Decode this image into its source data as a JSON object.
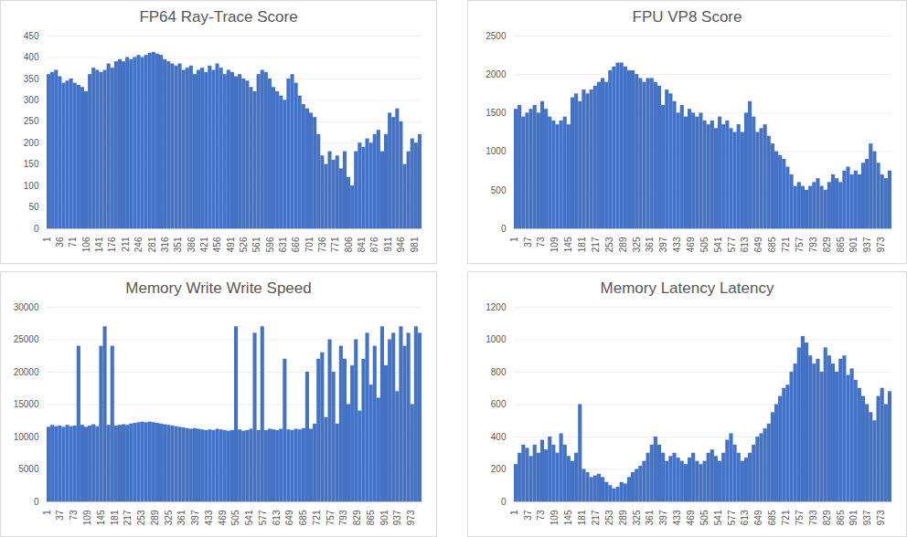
{
  "chart_data": [
    {
      "type": "bar",
      "title": "FP64 Ray-Trace Score",
      "color": "#4472c4",
      "grid": true,
      "x": [
        1,
        11,
        21,
        31,
        41,
        51,
        61,
        71,
        81,
        91,
        101,
        111,
        121,
        131,
        141,
        151,
        161,
        171,
        181,
        191,
        201,
        211,
        221,
        231,
        241,
        251,
        261,
        271,
        281,
        291,
        301,
        311,
        321,
        331,
        341,
        351,
        361,
        371,
        381,
        391,
        401,
        411,
        421,
        431,
        441,
        451,
        461,
        471,
        481,
        491,
        501,
        511,
        521,
        531,
        541,
        551,
        561,
        571,
        581,
        591,
        601,
        611,
        621,
        631,
        641,
        651,
        661,
        671,
        681,
        691,
        701,
        711,
        721,
        731,
        741,
        751,
        761,
        771,
        781,
        791,
        801,
        811,
        821,
        831,
        841,
        851,
        861,
        871,
        881,
        891,
        901,
        911,
        921,
        931,
        941,
        951,
        961,
        971,
        981,
        991
      ],
      "values": [
        360,
        365,
        370,
        355,
        340,
        345,
        350,
        340,
        335,
        330,
        320,
        360,
        375,
        370,
        365,
        370,
        385,
        375,
        390,
        395,
        390,
        400,
        395,
        400,
        405,
        400,
        405,
        410,
        412,
        408,
        405,
        395,
        390,
        385,
        380,
        385,
        370,
        375,
        380,
        360,
        370,
        375,
        365,
        380,
        370,
        385,
        375,
        360,
        370,
        365,
        355,
        360,
        350,
        345,
        330,
        320,
        360,
        370,
        365,
        350,
        330,
        320,
        310,
        300,
        350,
        360,
        340,
        310,
        290,
        280,
        270,
        260,
        220,
        170,
        150,
        180,
        160,
        170,
        140,
        180,
        120,
        100,
        180,
        200,
        190,
        210,
        200,
        220,
        230,
        180,
        220,
        270,
        260,
        280,
        250,
        150,
        180,
        210,
        200,
        220
      ],
      "xlim": [
        1,
        1001
      ],
      "xticks": [
        1,
        36,
        71,
        106,
        141,
        176,
        211,
        246,
        281,
        316,
        351,
        386,
        421,
        456,
        491,
        526,
        561,
        596,
        631,
        666,
        701,
        736,
        771,
        806,
        841,
        876,
        911,
        946,
        981
      ],
      "ylim": [
        0,
        450
      ],
      "yticks": [
        0,
        50,
        100,
        150,
        200,
        250,
        300,
        350,
        400,
        450
      ]
    },
    {
      "type": "bar",
      "title": "FPU VP8 Score",
      "color": "#4472c4",
      "grid": true,
      "x": [
        1,
        11,
        21,
        31,
        41,
        51,
        61,
        71,
        81,
        91,
        101,
        111,
        121,
        131,
        141,
        151,
        161,
        171,
        181,
        191,
        201,
        211,
        221,
        231,
        241,
        251,
        261,
        271,
        281,
        291,
        301,
        311,
        321,
        331,
        341,
        351,
        361,
        371,
        381,
        391,
        401,
        411,
        421,
        431,
        441,
        451,
        461,
        471,
        481,
        491,
        501,
        511,
        521,
        531,
        541,
        551,
        561,
        571,
        581,
        591,
        601,
        611,
        621,
        631,
        641,
        651,
        661,
        671,
        681,
        691,
        701,
        711,
        721,
        731,
        741,
        751,
        761,
        771,
        781,
        791,
        801,
        811,
        821,
        831,
        841,
        851,
        861,
        871,
        881,
        891,
        901,
        911,
        921,
        931,
        941,
        951,
        961,
        971,
        981,
        991
      ],
      "values": [
        1550,
        1600,
        1450,
        1500,
        1550,
        1600,
        1500,
        1650,
        1550,
        1450,
        1400,
        1350,
        1400,
        1450,
        1350,
        1700,
        1750,
        1650,
        1800,
        1750,
        1800,
        1850,
        1900,
        1950,
        1900,
        2050,
        2100,
        2150,
        2150,
        2100,
        2050,
        2050,
        2000,
        1950,
        1900,
        1950,
        1950,
        1900,
        1850,
        1600,
        1800,
        1750,
        1650,
        1500,
        1600,
        1450,
        1550,
        1500,
        1450,
        1500,
        1400,
        1350,
        1400,
        1300,
        1450,
        1350,
        1400,
        1300,
        1250,
        1350,
        1250,
        1500,
        1650,
        1450,
        1250,
        1300,
        1350,
        1200,
        1100,
        1000,
        950,
        900,
        800,
        700,
        550,
        600,
        550,
        500,
        550,
        600,
        650,
        550,
        500,
        600,
        700,
        650,
        600,
        750,
        800,
        700,
        750,
        700,
        850,
        900,
        1100,
        1000,
        850,
        700,
        650,
        750
      ],
      "xlim": [
        1,
        1001
      ],
      "xticks": [
        1,
        37,
        73,
        109,
        145,
        181,
        217,
        253,
        289,
        325,
        361,
        397,
        433,
        469,
        505,
        541,
        577,
        613,
        649,
        685,
        721,
        757,
        793,
        829,
        865,
        901,
        937,
        973
      ],
      "ylim": [
        0,
        2500
      ],
      "yticks": [
        0,
        500,
        1000,
        1500,
        2000,
        2500
      ]
    },
    {
      "type": "bar",
      "title": "Memory Write Write Speed",
      "color": "#4472c4",
      "grid": true,
      "x": [
        1,
        11,
        21,
        31,
        41,
        51,
        61,
        71,
        81,
        91,
        101,
        111,
        121,
        131,
        141,
        151,
        161,
        171,
        181,
        191,
        201,
        211,
        221,
        231,
        241,
        251,
        261,
        271,
        281,
        291,
        301,
        311,
        321,
        331,
        341,
        351,
        361,
        371,
        381,
        391,
        401,
        411,
        421,
        431,
        441,
        451,
        461,
        471,
        481,
        491,
        501,
        511,
        521,
        531,
        541,
        551,
        561,
        571,
        581,
        591,
        601,
        611,
        621,
        631,
        641,
        651,
        661,
        671,
        681,
        691,
        701,
        711,
        721,
        731,
        741,
        751,
        761,
        771,
        781,
        791,
        801,
        811,
        821,
        831,
        841,
        851,
        861,
        871,
        881,
        891,
        901,
        911,
        921,
        931,
        941,
        951,
        961,
        971,
        981,
        991
      ],
      "values": [
        11500,
        11800,
        11600,
        11700,
        11500,
        11800,
        11600,
        11700,
        24000,
        11800,
        11500,
        11700,
        11900,
        11600,
        24000,
        27000,
        11800,
        24000,
        11700,
        11800,
        11900,
        11800,
        12000,
        12100,
        12200,
        12300,
        12200,
        12300,
        12200,
        12100,
        12000,
        11900,
        11800,
        11700,
        11600,
        11500,
        11400,
        11300,
        11200,
        11300,
        11200,
        11100,
        11000,
        11100,
        11000,
        11200,
        11100,
        11000,
        10900,
        11000,
        27000,
        11100,
        10900,
        11000,
        11200,
        26000,
        11000,
        27000,
        11000,
        11200,
        11100,
        11000,
        11200,
        22000,
        11100,
        11000,
        11200,
        11100,
        11300,
        20000,
        11200,
        12000,
        22000,
        23000,
        13000,
        25000,
        20000,
        12000,
        24000,
        22000,
        15000,
        21000,
        25000,
        14000,
        22000,
        26000,
        18000,
        24000,
        16000,
        27000,
        21000,
        25000,
        26000,
        17000,
        27000,
        24000,
        26000,
        15000,
        27000,
        26000
      ],
      "xlim": [
        1,
        1001
      ],
      "xticks": [
        1,
        37,
        73,
        109,
        145,
        181,
        217,
        253,
        289,
        325,
        361,
        397,
        433,
        469,
        505,
        541,
        577,
        613,
        649,
        685,
        721,
        757,
        793,
        829,
        865,
        901,
        937,
        973
      ],
      "ylim": [
        0,
        30000
      ],
      "yticks": [
        0,
        5000,
        10000,
        15000,
        20000,
        25000,
        30000
      ]
    },
    {
      "type": "bar",
      "title": "Memory Latency Latency",
      "color": "#4472c4",
      "grid": true,
      "x": [
        1,
        11,
        21,
        31,
        41,
        51,
        61,
        71,
        81,
        91,
        101,
        111,
        121,
        131,
        141,
        151,
        161,
        171,
        181,
        191,
        201,
        211,
        221,
        231,
        241,
        251,
        261,
        271,
        281,
        291,
        301,
        311,
        321,
        331,
        341,
        351,
        361,
        371,
        381,
        391,
        401,
        411,
        421,
        431,
        441,
        451,
        461,
        471,
        481,
        491,
        501,
        511,
        521,
        531,
        541,
        551,
        561,
        571,
        581,
        591,
        601,
        611,
        621,
        631,
        641,
        651,
        661,
        671,
        681,
        691,
        701,
        711,
        721,
        731,
        741,
        751,
        761,
        771,
        781,
        791,
        801,
        811,
        821,
        831,
        841,
        851,
        861,
        871,
        881,
        891,
        901,
        911,
        921,
        931,
        941,
        951,
        961,
        971,
        981,
        991
      ],
      "values": [
        230,
        300,
        350,
        330,
        280,
        350,
        300,
        380,
        320,
        400,
        350,
        300,
        420,
        350,
        280,
        250,
        300,
        600,
        200,
        180,
        150,
        160,
        170,
        150,
        120,
        100,
        80,
        90,
        120,
        110,
        150,
        180,
        200,
        220,
        250,
        300,
        350,
        400,
        350,
        300,
        250,
        280,
        300,
        270,
        250,
        230,
        270,
        300,
        250,
        230,
        250,
        300,
        320,
        280,
        250,
        300,
        380,
        420,
        350,
        300,
        250,
        270,
        300,
        350,
        400,
        420,
        450,
        480,
        550,
        600,
        650,
        700,
        720,
        800,
        850,
        950,
        1020,
        980,
        900,
        850,
        880,
        800,
        950,
        900,
        850,
        800,
        880,
        900,
        780,
        820,
        750,
        700,
        650,
        600,
        550,
        500,
        650,
        700,
        600,
        680
      ],
      "xlim": [
        1,
        1001
      ],
      "xticks": [
        1,
        37,
        73,
        109,
        145,
        181,
        217,
        253,
        289,
        325,
        361,
        397,
        433,
        469,
        505,
        541,
        577,
        613,
        649,
        685,
        721,
        757,
        793,
        829,
        865,
        901,
        937,
        973
      ],
      "ylim": [
        0,
        1200
      ],
      "yticks": [
        0,
        200,
        400,
        600,
        800,
        1000,
        1200
      ]
    }
  ]
}
